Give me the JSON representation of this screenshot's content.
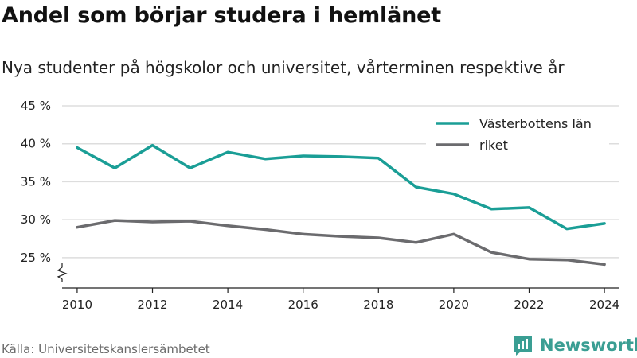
{
  "title": "Andel som börjar studera i hemlänet",
  "subtitle": "Nya studenter på högskolor och universitet, vårterminen respektive år",
  "source": "Källa: Universitetskanslersämbetet",
  "brand": "Newsworthy",
  "colors": {
    "primary": "#1a9e96",
    "secondary": "#6b6b6e",
    "grid": "#dddddd",
    "brand": "#3a9e93"
  },
  "chart_data": {
    "type": "line",
    "x": [
      2010,
      2011,
      2012,
      2013,
      2014,
      2015,
      2016,
      2017,
      2018,
      2019,
      2020,
      2021,
      2022,
      2023,
      2024
    ],
    "series": [
      {
        "name": "Västerbottens län",
        "color": "#1a9e96",
        "values": [
          39.5,
          36.8,
          39.8,
          36.8,
          38.9,
          38.0,
          38.4,
          38.3,
          38.1,
          34.3,
          33.4,
          31.4,
          31.6,
          28.8,
          29.5
        ]
      },
      {
        "name": "riket",
        "color": "#6b6b6e",
        "values": [
          29.0,
          29.9,
          29.7,
          29.8,
          29.2,
          28.7,
          28.1,
          27.8,
          27.6,
          27.0,
          28.1,
          25.7,
          24.8,
          24.7,
          24.1
        ]
      }
    ],
    "y_ticks": [
      25,
      30,
      35,
      40,
      45
    ],
    "y_tick_labels": [
      "25 %",
      "30 %",
      "35 %",
      "40 %",
      "45 %"
    ],
    "x_ticks": [
      2010,
      2012,
      2014,
      2016,
      2018,
      2020,
      2022,
      2024
    ],
    "x_tick_labels": [
      "2010",
      "2012",
      "2014",
      "2016",
      "2018",
      "2020",
      "2022",
      "2024"
    ],
    "xlim": [
      2009.6,
      2024.4
    ],
    "ylim": [
      21,
      45
    ],
    "y_axis_break": true,
    "grid": true,
    "legend_position": "top-right"
  }
}
